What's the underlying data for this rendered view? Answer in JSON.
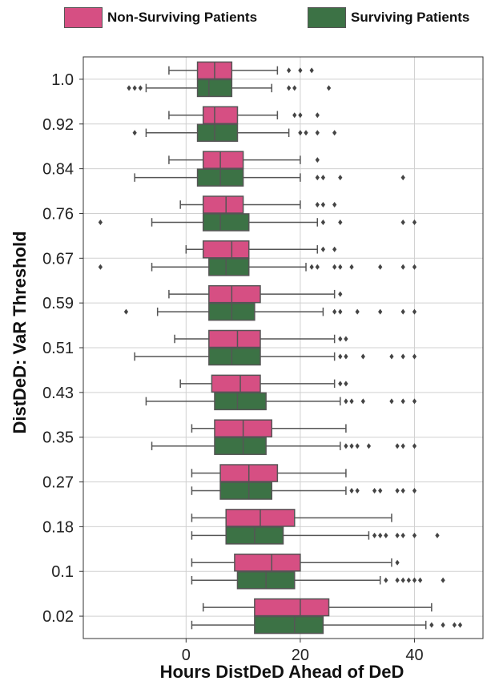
{
  "colors": {
    "non_surviving": "#d64f83",
    "surviving": "#3c7245",
    "grid": "#d0d0d0",
    "whisker": "#555555",
    "outlier": "#444444"
  },
  "legend": {
    "non_surviving_label": "Non-Surviving Patients",
    "surviving_label": "Surviving Patients"
  },
  "chart_data": {
    "type": "boxplot",
    "orientation": "horizontal",
    "xlabel": "Hours DistDeD Ahead of DeD",
    "ylabel": "DistDeD: VaR Threshold",
    "xlim": [
      -18,
      52
    ],
    "xticks": [
      0,
      20,
      40
    ],
    "grid": true,
    "legend_position": "top",
    "categories": [
      "1.0",
      "0.92",
      "0.84",
      "0.76",
      "0.67",
      "0.59",
      "0.51",
      "0.43",
      "0.35",
      "0.27",
      "0.18",
      "0.1",
      "0.02"
    ],
    "series": [
      {
        "name": "Non-Surviving Patients",
        "boxes": [
          {
            "whislo": -3,
            "q1": 2,
            "med": 5,
            "q3": 8,
            "whishi": 16,
            "fliers": [
              18,
              20,
              22
            ]
          },
          {
            "whislo": -3,
            "q1": 3,
            "med": 5,
            "q3": 9,
            "whishi": 16,
            "fliers": [
              19,
              20,
              23
            ]
          },
          {
            "whislo": -3,
            "q1": 3,
            "med": 6,
            "q3": 10,
            "whishi": 20,
            "fliers": [
              23
            ]
          },
          {
            "whislo": -1,
            "q1": 3,
            "med": 7,
            "q3": 10,
            "whishi": 20,
            "fliers": [
              23,
              24,
              26
            ]
          },
          {
            "whislo": 0,
            "q1": 3,
            "med": 8,
            "q3": 11,
            "whishi": 23,
            "fliers": [
              24,
              26
            ]
          },
          {
            "whislo": -3,
            "q1": 4,
            "med": 8,
            "q3": 13,
            "whishi": 26,
            "fliers": [
              27
            ]
          },
          {
            "whislo": -2,
            "q1": 4,
            "med": 9,
            "q3": 13,
            "whishi": 26,
            "fliers": [
              27,
              28
            ]
          },
          {
            "whislo": -1,
            "q1": 4.5,
            "med": 9.5,
            "q3": 13,
            "whishi": 26,
            "fliers": [
              27,
              28
            ]
          },
          {
            "whislo": 1,
            "q1": 5,
            "med": 10,
            "q3": 15,
            "whishi": 28,
            "fliers": []
          },
          {
            "whislo": 1,
            "q1": 6,
            "med": 11,
            "q3": 16,
            "whishi": 28,
            "fliers": []
          },
          {
            "whislo": 1,
            "q1": 7,
            "med": 13,
            "q3": 19,
            "whishi": 36,
            "fliers": []
          },
          {
            "whislo": 1,
            "q1": 8.5,
            "med": 15,
            "q3": 20,
            "whishi": 36,
            "fliers": [
              37
            ]
          },
          {
            "whislo": 3,
            "q1": 12,
            "med": 20,
            "q3": 25,
            "whishi": 43,
            "fliers": []
          }
        ]
      },
      {
        "name": "Surviving Patients",
        "boxes": [
          {
            "whislo": -7,
            "q1": 2,
            "med": 4,
            "q3": 8,
            "whishi": 15,
            "fliers": [
              -10,
              -9,
              -8,
              18,
              19,
              25
            ]
          },
          {
            "whislo": -7,
            "q1": 2,
            "med": 5,
            "q3": 9,
            "whishi": 18,
            "fliers": [
              -9,
              20,
              21,
              23,
              26
            ]
          },
          {
            "whislo": -9,
            "q1": 2,
            "med": 6,
            "q3": 10,
            "whishi": 20,
            "fliers": [
              23,
              24,
              27,
              38
            ]
          },
          {
            "whislo": -6,
            "q1": 3,
            "med": 6,
            "q3": 11,
            "whishi": 23,
            "fliers": [
              -15,
              24,
              27,
              38,
              40
            ]
          },
          {
            "whislo": -6,
            "q1": 4,
            "med": 7,
            "q3": 11,
            "whishi": 21,
            "fliers": [
              -15,
              22,
              23,
              26,
              27,
              29,
              34,
              38,
              40
            ]
          },
          {
            "whislo": -5,
            "q1": 4,
            "med": 8,
            "q3": 12,
            "whishi": 24,
            "fliers": [
              -10.5,
              26,
              27,
              30,
              34,
              38,
              40
            ]
          },
          {
            "whislo": -9,
            "q1": 4,
            "med": 8,
            "q3": 13,
            "whishi": 26,
            "fliers": [
              27,
              28,
              31,
              36,
              38,
              40
            ]
          },
          {
            "whislo": -7,
            "q1": 5,
            "med": 9,
            "q3": 14,
            "whishi": 27,
            "fliers": [
              28,
              29,
              31,
              36,
              38,
              40
            ]
          },
          {
            "whislo": -6,
            "q1": 5,
            "med": 10,
            "q3": 14,
            "whishi": 27,
            "fliers": [
              28,
              29,
              30,
              32,
              37,
              38,
              40
            ]
          },
          {
            "whislo": 1,
            "q1": 6,
            "med": 11,
            "q3": 15,
            "whishi": 28,
            "fliers": [
              29,
              30,
              33,
              34,
              37,
              38,
              40
            ]
          },
          {
            "whislo": 1,
            "q1": 7,
            "med": 12,
            "q3": 17,
            "whishi": 32,
            "fliers": [
              33,
              34,
              35,
              37,
              38,
              40,
              44
            ]
          },
          {
            "whislo": 1,
            "q1": 9,
            "med": 14,
            "q3": 19,
            "whishi": 34,
            "fliers": [
              35,
              37,
              38,
              39,
              40,
              41,
              45
            ]
          },
          {
            "whislo": 1,
            "q1": 12,
            "med": 19,
            "q3": 24,
            "whishi": 42,
            "fliers": [
              43,
              45,
              47,
              48
            ]
          }
        ]
      }
    ]
  }
}
